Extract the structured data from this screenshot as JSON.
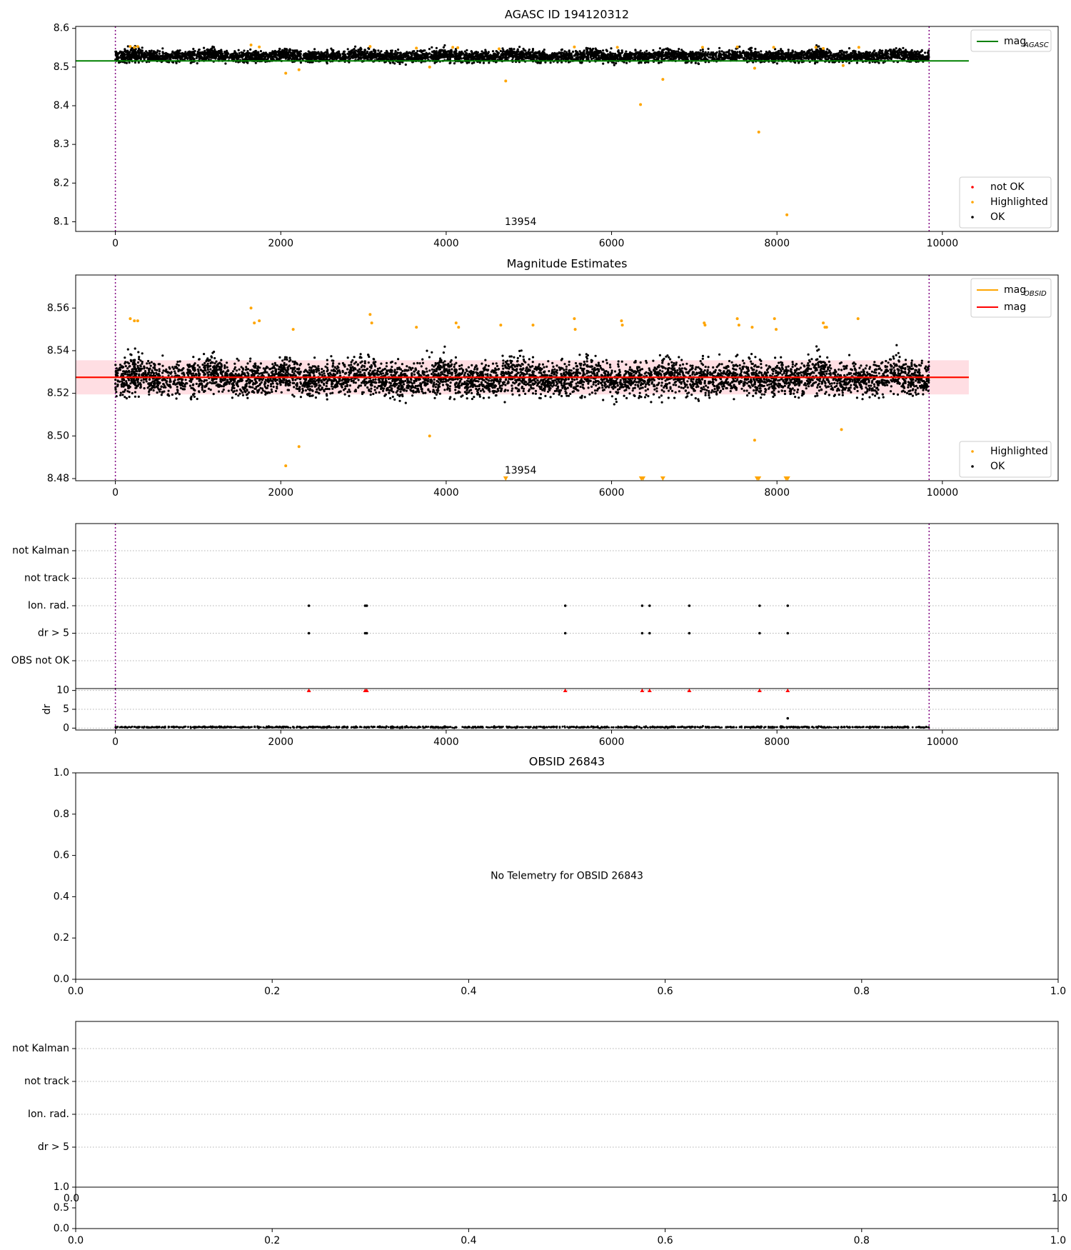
{
  "colors": {
    "ok": "#000000",
    "highlighted": "#ffa500",
    "not_ok": "#ff0000",
    "mag_agasc": "#008000",
    "mag_obsid": "#ffa500",
    "mag": "#ff0000",
    "band": "#ffb6c1",
    "vline": "#800080",
    "grid": "#b0b0b0"
  },
  "chart_data": [
    {
      "id": "agasc",
      "type": "scatter",
      "title": "AGASC ID 194120312",
      "xlim": [
        -480,
        11400
      ],
      "ylim": [
        8.075,
        8.605
      ],
      "x_ticks": [
        0,
        2000,
        4000,
        6000,
        8000,
        10000
      ],
      "y_ticks": [
        8.1,
        8.2,
        8.3,
        8.4,
        8.5,
        8.6
      ],
      "y_tick_labels": [
        "8.1",
        "8.2",
        "8.3",
        "8.4",
        "8.5",
        "8.6"
      ],
      "obs_start": 0,
      "obs_end": 9840,
      "obsid_text": "13954",
      "obsid_text_x": 4900,
      "mag_agasc": {
        "value": 8.516,
        "x_range": [
          -480,
          10320
        ]
      },
      "ok_band": {
        "mean": 8.527,
        "spread": 0.016,
        "n": 5200
      },
      "highlighted_points": [
        [
          180,
          8.553
        ],
        [
          230,
          8.551
        ],
        [
          270,
          8.553
        ],
        [
          1640,
          8.557
        ],
        [
          1740,
          8.552
        ],
        [
          2060,
          8.484
        ],
        [
          2220,
          8.493
        ],
        [
          3080,
          8.553
        ],
        [
          3640,
          8.549
        ],
        [
          3800,
          8.5
        ],
        [
          4080,
          8.551
        ],
        [
          4140,
          8.55
        ],
        [
          4640,
          8.547
        ],
        [
          4720,
          8.464
        ],
        [
          5550,
          8.552
        ],
        [
          6070,
          8.551
        ],
        [
          6350,
          8.403
        ],
        [
          6620,
          8.468
        ],
        [
          7100,
          8.551
        ],
        [
          7520,
          8.552
        ],
        [
          7730,
          8.497
        ],
        [
          7780,
          8.332
        ],
        [
          7960,
          8.551
        ],
        [
          8120,
          8.118
        ],
        [
          8470,
          8.551
        ],
        [
          8560,
          8.548
        ],
        [
          8800,
          8.504
        ],
        [
          8990,
          8.551
        ]
      ],
      "not_ok_points": [],
      "legends": {
        "lines": [
          {
            "label": "mag",
            "sub": "AGASC",
            "color": "#008000"
          }
        ],
        "points": [
          {
            "label": "not OK",
            "color": "#ff0000"
          },
          {
            "label": "Highlighted",
            "color": "#ffa500"
          },
          {
            "label": "OK",
            "color": "#000000"
          }
        ]
      }
    },
    {
      "id": "estimates",
      "type": "scatter",
      "title": "Magnitude Estimates",
      "xlim": [
        -480,
        11400
      ],
      "ylim": [
        8.479,
        8.5755
      ],
      "x_ticks": [
        0,
        2000,
        4000,
        6000,
        8000,
        10000
      ],
      "y_ticks": [
        8.48,
        8.5,
        8.52,
        8.54,
        8.56
      ],
      "y_tick_labels": [
        "8.48",
        "8.50",
        "8.52",
        "8.54",
        "8.56"
      ],
      "obs_start": 0,
      "obs_end": 9840,
      "obsid_text": "13954",
      "obsid_text_x": 4900,
      "mag": {
        "value": 8.5275,
        "x_range": [
          -480,
          10320
        ]
      },
      "mag_obsid": {
        "value": 8.5275,
        "x_range": [
          -480,
          10320
        ]
      },
      "band": {
        "low": 8.5195,
        "high": 8.5355
      },
      "ok_band": {
        "mean": 8.5265,
        "spread": 0.0085,
        "n": 5200
      },
      "highlighted_points": [
        [
          180,
          8.555
        ],
        [
          230,
          8.554
        ],
        [
          270,
          8.554
        ],
        [
          1640,
          8.56
        ],
        [
          1680,
          8.553
        ],
        [
          1740,
          8.554
        ],
        [
          2060,
          8.486
        ],
        [
          2150,
          8.55
        ],
        [
          2220,
          8.495
        ],
        [
          3080,
          8.557
        ],
        [
          3100,
          8.553
        ],
        [
          3640,
          8.551
        ],
        [
          3800,
          8.5
        ],
        [
          4120,
          8.553
        ],
        [
          4150,
          8.551
        ],
        [
          4660,
          8.552
        ],
        [
          5050,
          8.552
        ],
        [
          5550,
          8.555
        ],
        [
          5560,
          8.55
        ],
        [
          6120,
          8.554
        ],
        [
          6130,
          8.552
        ],
        [
          7120,
          8.553
        ],
        [
          7130,
          8.552
        ],
        [
          7520,
          8.555
        ],
        [
          7540,
          8.552
        ],
        [
          7700,
          8.551
        ],
        [
          7730,
          8.498
        ],
        [
          7970,
          8.555
        ],
        [
          7990,
          8.55
        ],
        [
          8560,
          8.553
        ],
        [
          8580,
          8.551
        ],
        [
          8600,
          8.551
        ],
        [
          8780,
          8.503
        ],
        [
          8980,
          8.555
        ]
      ],
      "clipped_down": [
        4720,
        6360,
        6380,
        6620,
        7760,
        7780,
        8110,
        8130
      ],
      "legends": {
        "lines": [
          {
            "label": "mag",
            "sub": "OBSID",
            "color": "#ffa500"
          },
          {
            "label": "mag",
            "sub": "",
            "color": "#ff0000"
          }
        ],
        "points": [
          {
            "label": "Highlighted",
            "color": "#ffa500"
          },
          {
            "label": "OK",
            "color": "#000000"
          }
        ]
      }
    },
    {
      "id": "flags",
      "type": "scatter",
      "xlim": [
        -480,
        11400
      ],
      "categories": [
        "not Kalman",
        "not track",
        "Ion. rad.",
        "dr > 5",
        "OBS not OK"
      ],
      "obs_start": 0,
      "obs_end": 9840,
      "flag_points": {
        "Ion. rad.": [
          2340,
          3020,
          3040,
          5440,
          6370,
          6460,
          6940,
          7790,
          8130
        ],
        "dr > 5": [
          2340,
          3020,
          3040,
          5440,
          6370,
          6460,
          6940,
          7790,
          8130
        ]
      }
    },
    {
      "id": "dr",
      "type": "scatter",
      "xlim": [
        -480,
        11400
      ],
      "ylim": [
        -0.5,
        10.5
      ],
      "ylabel": "dr",
      "x_ticks": [
        0,
        2000,
        4000,
        6000,
        8000,
        10000
      ],
      "y_ticks": [
        0,
        5,
        10
      ],
      "y_tick_labels": [
        "0",
        "5",
        "10"
      ],
      "obs_start": 0,
      "obs_end": 9840,
      "baseline": {
        "mean": 0.25,
        "spread": 0.2,
        "n": 1200
      },
      "outlier_points": [
        [
          8130,
          2.6
        ]
      ],
      "clipped_up": [
        2340,
        3020,
        3040,
        5440,
        6370,
        6460,
        6940,
        7790,
        8130
      ]
    },
    {
      "id": "obsid",
      "type": "scatter",
      "title": "OBSID 26843",
      "message": "No Telemetry for OBSID 26843",
      "xlim": [
        0,
        1
      ],
      "ylim": [
        0,
        1
      ],
      "x_ticks": [
        0,
        0.2,
        0.4,
        0.6,
        0.8,
        1
      ],
      "x_tick_labels": [
        "0.0",
        "0.2",
        "0.4",
        "0.6",
        "0.8",
        "1.0"
      ],
      "y_ticks": [
        0,
        0.2,
        0.4,
        0.6,
        0.8,
        1
      ],
      "y_tick_labels": [
        "0.0",
        "0.2",
        "0.4",
        "0.6",
        "0.8",
        "1.0"
      ]
    },
    {
      "id": "flags2",
      "type": "scatter",
      "categories": [
        "not Kalman",
        "not track",
        "Ion. rad.",
        "dr > 5"
      ],
      "overlap_tick_labels": [
        "0.0",
        "1.0"
      ]
    },
    {
      "id": "dr2",
      "type": "scatter",
      "xlim": [
        0,
        1
      ],
      "ylim": [
        0,
        1
      ],
      "x_ticks": [
        0,
        0.2,
        0.4,
        0.6,
        0.8,
        1
      ],
      "x_tick_labels": [
        "0.0",
        "0.2",
        "0.4",
        "0.6",
        "0.8",
        "1.0"
      ],
      "y_ticks": [
        0,
        0.5,
        1
      ],
      "y_tick_labels": [
        "0.0",
        "0.5",
        "1.0"
      ]
    }
  ]
}
